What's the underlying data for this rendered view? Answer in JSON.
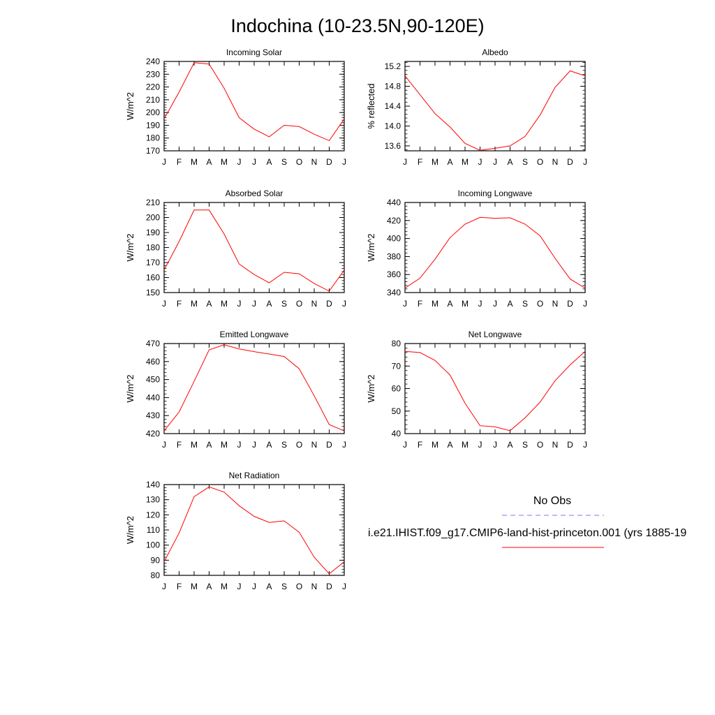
{
  "title": "Indochina (10-23.5N,90-120E)",
  "legend": {
    "obs_label": "No Obs",
    "model_label": "i.e21.IHIST.f09_g17.CMIP6-land-hist-princeton.001 (yrs 1885-19",
    "obs_color": "#7a7aff",
    "model_color": "#ff0000"
  },
  "chart_data": [
    {
      "type": "line",
      "title": "Incoming Solar",
      "ylabel": "W/m^2",
      "x": [
        "J",
        "F",
        "M",
        "A",
        "M",
        "J",
        "J",
        "A",
        "S",
        "O",
        "N",
        "D",
        "J"
      ],
      "ylim": [
        170,
        240
      ],
      "yticks": [
        170,
        180,
        190,
        200,
        210,
        220,
        230,
        240
      ],
      "ytick_labels": [
        "170",
        "180",
        "190",
        "200",
        "210",
        "220",
        "230",
        "240"
      ],
      "series": [
        {
          "values": [
            195,
            216,
            239,
            238,
            219,
            196,
            187,
            181,
            190,
            189,
            183,
            178,
            195
          ],
          "color": "#ff0000"
        }
      ]
    },
    {
      "type": "line",
      "title": "Albedo",
      "ylabel": "% reflected",
      "x": [
        "J",
        "F",
        "M",
        "A",
        "M",
        "J",
        "J",
        "A",
        "S",
        "O",
        "N",
        "D",
        "J"
      ],
      "ylim": [
        13.5,
        15.3
      ],
      "yticks": [
        13.6,
        14.0,
        14.4,
        14.8,
        15.2
      ],
      "ytick_labels": [
        "13.6",
        "14.0",
        "14.4",
        "14.8",
        "15.2"
      ],
      "series": [
        {
          "values": [
            15.01,
            14.63,
            14.25,
            13.98,
            13.65,
            13.51,
            13.55,
            13.6,
            13.79,
            14.22,
            14.78,
            15.11,
            15.01
          ],
          "color": "#ff0000"
        }
      ]
    },
    {
      "type": "line",
      "title": "Absorbed Solar",
      "ylabel": "W/m^2",
      "x": [
        "J",
        "F",
        "M",
        "A",
        "M",
        "J",
        "J",
        "A",
        "S",
        "O",
        "N",
        "D",
        "J"
      ],
      "ylim": [
        150,
        210
      ],
      "yticks": [
        150,
        160,
        170,
        180,
        190,
        200,
        210
      ],
      "ytick_labels": [
        "150",
        "160",
        "170",
        "180",
        "190",
        "200",
        "210"
      ],
      "series": [
        {
          "values": [
            165,
            184,
            205,
            205,
            189,
            169,
            162,
            156.5,
            163.5,
            162.5,
            156,
            151,
            165
          ],
          "color": "#ff0000"
        }
      ]
    },
    {
      "type": "line",
      "title": "Incoming Longwave",
      "ylabel": "W/m^2",
      "x": [
        "J",
        "F",
        "M",
        "A",
        "M",
        "J",
        "J",
        "A",
        "S",
        "O",
        "N",
        "D",
        "J"
      ],
      "ylim": [
        340,
        440
      ],
      "yticks": [
        340,
        360,
        380,
        400,
        420,
        440
      ],
      "ytick_labels": [
        "340",
        "360",
        "380",
        "400",
        "420",
        "440"
      ],
      "series": [
        {
          "values": [
            345,
            356,
            377,
            401,
            416,
            423.5,
            422.5,
            423,
            416,
            403,
            378,
            355,
            345
          ],
          "color": "#ff0000"
        }
      ]
    },
    {
      "type": "line",
      "title": "Emitted Longwave",
      "ylabel": "W/m^2",
      "x": [
        "J",
        "F",
        "M",
        "A",
        "M",
        "J",
        "J",
        "A",
        "S",
        "O",
        "N",
        "D",
        "J"
      ],
      "ylim": [
        420,
        470
      ],
      "yticks": [
        420,
        430,
        440,
        450,
        460,
        470
      ],
      "ytick_labels": [
        "420",
        "430",
        "440",
        "450",
        "460",
        "470"
      ],
      "series": [
        {
          "values": [
            421.5,
            432,
            449,
            466.5,
            469.3,
            467,
            465.5,
            464.2,
            462.8,
            456,
            441,
            425,
            421.5
          ],
          "color": "#ff0000"
        }
      ]
    },
    {
      "type": "line",
      "title": "Net Longwave",
      "ylabel": "W/m^2",
      "x": [
        "J",
        "F",
        "M",
        "A",
        "M",
        "J",
        "J",
        "A",
        "S",
        "O",
        "N",
        "D",
        "J"
      ],
      "ylim": [
        40,
        80
      ],
      "yticks": [
        40,
        50,
        60,
        70,
        80
      ],
      "ytick_labels": [
        "40",
        "50",
        "60",
        "70",
        "80"
      ],
      "series": [
        {
          "values": [
            76.5,
            76,
            72.5,
            66,
            53.5,
            43.5,
            43,
            41.3,
            47,
            54,
            63.5,
            70.5,
            76.5
          ],
          "color": "#ff0000"
        }
      ]
    },
    {
      "type": "line",
      "title": "Net Radiation",
      "ylabel": "W/m^2",
      "x": [
        "J",
        "F",
        "M",
        "A",
        "M",
        "J",
        "J",
        "A",
        "S",
        "O",
        "N",
        "D",
        "J"
      ],
      "ylim": [
        80,
        140
      ],
      "yticks": [
        80,
        90,
        100,
        110,
        120,
        130,
        140
      ],
      "ytick_labels": [
        "80",
        "90",
        "100",
        "110",
        "120",
        "130",
        "140"
      ],
      "series": [
        {
          "values": [
            89,
            108,
            132,
            138.5,
            135,
            126,
            119,
            115,
            116,
            108.5,
            92,
            81,
            89
          ],
          "color": "#ff0000"
        }
      ]
    }
  ]
}
